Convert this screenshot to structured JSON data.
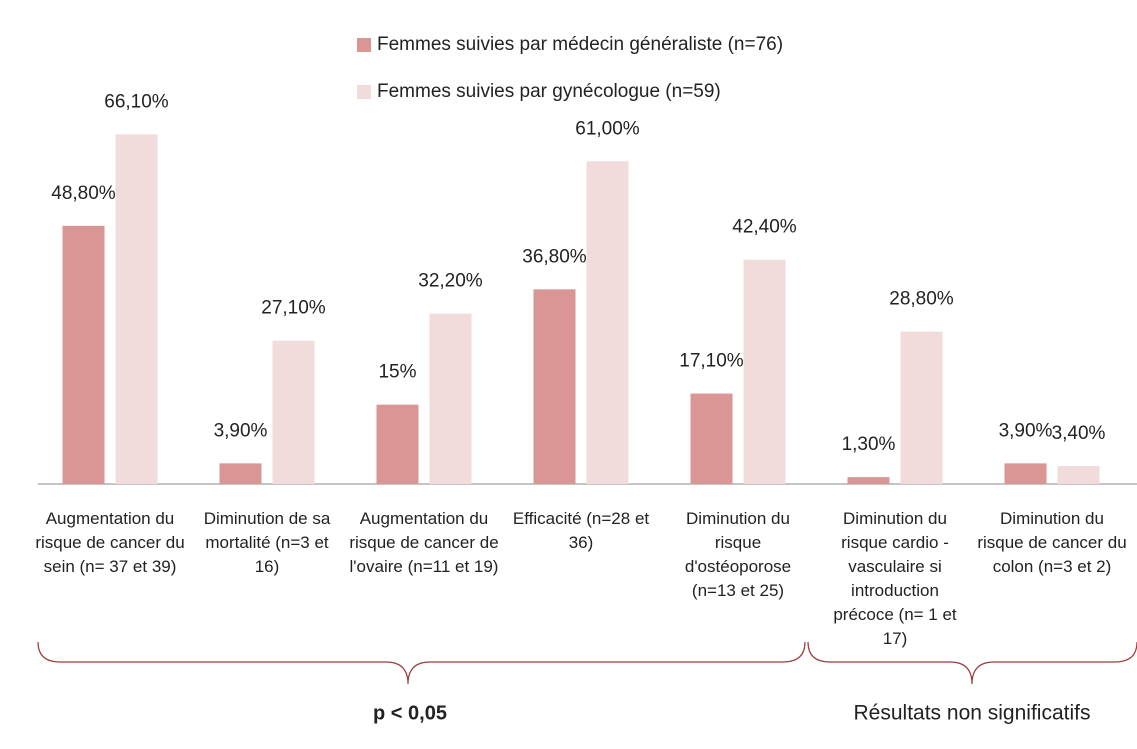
{
  "chart_data": {
    "type": "bar",
    "categories": [
      "Augmentation du risque de cancer du sein (n= 37 et 39)",
      "Diminution de sa mortalité (n=3 et 16)",
      "Augmentation du risque de cancer de l'ovaire (n=11 et 19)",
      "Efficacité (n=28 et 36)",
      "Diminution du risque d'ostéoporose (n=13 et 25)",
      "Diminution du risque cardio - vasculaire si introduction précoce (n= 1 et 17)",
      "Diminution du risque de cancer du colon (n=3 et 2)"
    ],
    "series": [
      {
        "name": "Femmes suivies par médecin généraliste (n=76)",
        "color": "#d99694",
        "values": [
          48.8,
          3.9,
          15,
          36.8,
          17.1,
          1.3,
          3.9
        ],
        "value_labels": [
          "48,80%",
          "3,90%",
          "15%",
          "36,80%",
          "17,10%",
          "1,30%",
          "3,90%"
        ]
      },
      {
        "name": "Femmes suivies par gynécologue (n=59)",
        "color": "#f2dcdb",
        "values": [
          66.1,
          27.1,
          32.2,
          61,
          42.4,
          28.8,
          3.4
        ],
        "value_labels": [
          "66,10%",
          "27,10%",
          "32,20%",
          "61,00%",
          "42,40%",
          "28,80%",
          "3,40%"
        ]
      }
    ],
    "annotations": [
      "p < 0,05",
      "Résultats non significatifs"
    ]
  }
}
